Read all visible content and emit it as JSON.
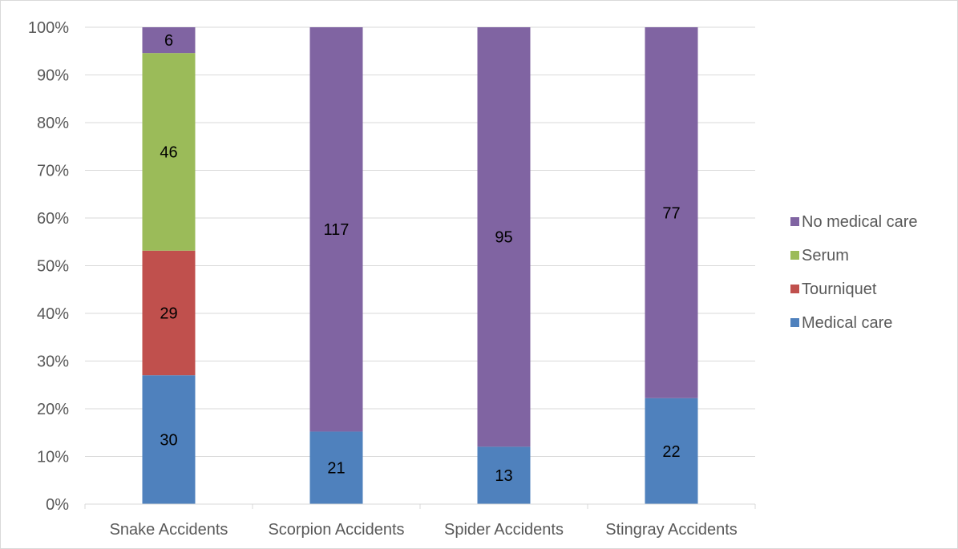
{
  "chart_data": {
    "type": "bar",
    "stacked": true,
    "normalized": true,
    "categories": [
      "Snake Accidents",
      "Scorpion Accidents",
      "Spider Accidents",
      "Stingray Accidents"
    ],
    "series": [
      {
        "name": "Medical care",
        "color": "#4f81bd",
        "values": [
          30,
          21,
          13,
          22
        ]
      },
      {
        "name": "Tourniquet",
        "color": "#c0504d",
        "values": [
          29,
          0,
          0,
          0
        ]
      },
      {
        "name": "Serum",
        "color": "#9bbb59",
        "values": [
          46,
          0,
          0,
          0
        ]
      },
      {
        "name": "No medical care",
        "color": "#8064a2",
        "values": [
          6,
          117,
          95,
          77
        ]
      }
    ],
    "y_ticks": [
      "0%",
      "10%",
      "20%",
      "30%",
      "40%",
      "50%",
      "60%",
      "70%",
      "80%",
      "90%",
      "100%"
    ],
    "ylim": [
      0,
      100
    ],
    "grid": true,
    "legend_position": "right"
  }
}
